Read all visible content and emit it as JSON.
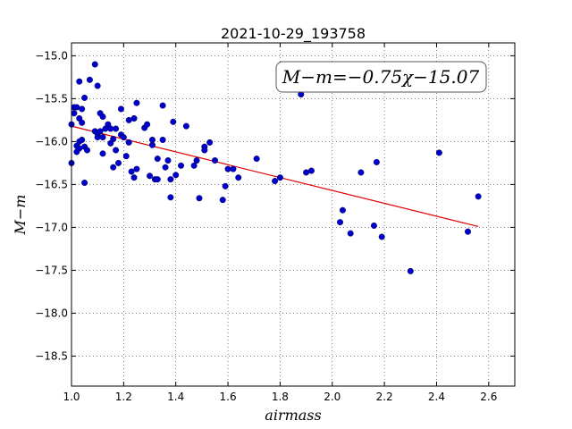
{
  "chart_data": {
    "type": "scatter",
    "title": "2021-10-29_193758",
    "xlabel": "airmass",
    "ylabel": "M−m",
    "annotation": "M−m=−0.75χ−15.07",
    "xlim": [
      1.0,
      2.7
    ],
    "ylim": [
      -18.85,
      -14.85
    ],
    "y_inverted": true,
    "grid": true,
    "x_ticks": [
      1.0,
      1.2,
      1.4,
      1.6,
      1.8,
      2.0,
      2.2,
      2.4,
      2.6
    ],
    "x_tick_labels": [
      "1.0",
      "1.2",
      "1.4",
      "1.6",
      "1.8",
      "2.0",
      "2.2",
      "2.4",
      "2.6"
    ],
    "y_ticks": [
      -15.0,
      -15.5,
      -16.0,
      -16.5,
      -17.0,
      -17.5,
      -18.0,
      -18.5
    ],
    "y_tick_labels": [
      "−15.0",
      "−15.5",
      "−16.0",
      "−16.5",
      "−17.0",
      "−17.5",
      "−18.0",
      "−18.5"
    ],
    "points_color": "#0000cc",
    "fit_color": "#dd0000",
    "fit_line": {
      "slope": -0.75,
      "intercept": -15.07,
      "x_range": [
        1.0,
        2.56
      ]
    },
    "points": [
      [
        1.0,
        -15.8
      ],
      [
        1.0,
        -16.25
      ],
      [
        1.01,
        -15.6
      ],
      [
        1.01,
        -15.67
      ],
      [
        1.02,
        -15.6
      ],
      [
        1.02,
        -16.05
      ],
      [
        1.02,
        -16.12
      ],
      [
        1.03,
        -15.73
      ],
      [
        1.03,
        -16.0
      ],
      [
        1.03,
        -16.08
      ],
      [
        1.03,
        -15.3
      ],
      [
        1.04,
        -15.62
      ],
      [
        1.04,
        -15.98
      ],
      [
        1.04,
        -15.78
      ],
      [
        1.05,
        -15.49
      ],
      [
        1.05,
        -16.48
      ],
      [
        1.05,
        -16.06
      ],
      [
        1.06,
        -16.1
      ],
      [
        1.07,
        -15.28
      ],
      [
        1.09,
        -15.1
      ],
      [
        1.09,
        -15.88
      ],
      [
        1.1,
        -15.35
      ],
      [
        1.1,
        -15.91
      ],
      [
        1.1,
        -15.95
      ],
      [
        1.11,
        -15.67
      ],
      [
        1.11,
        -15.88
      ],
      [
        1.12,
        -15.71
      ],
      [
        1.12,
        -16.14
      ],
      [
        1.12,
        -15.95
      ],
      [
        1.13,
        -15.85
      ],
      [
        1.14,
        -15.8
      ],
      [
        1.15,
        -15.85
      ],
      [
        1.15,
        -16.02
      ],
      [
        1.16,
        -15.97
      ],
      [
        1.16,
        -16.3
      ],
      [
        1.17,
        -15.85
      ],
      [
        1.17,
        -16.1
      ],
      [
        1.18,
        -16.25
      ],
      [
        1.19,
        -15.62
      ],
      [
        1.19,
        -15.92
      ],
      [
        1.2,
        -15.95
      ],
      [
        1.21,
        -16.17
      ],
      [
        1.22,
        -15.75
      ],
      [
        1.22,
        -16.01
      ],
      [
        1.23,
        -16.35
      ],
      [
        1.24,
        -15.73
      ],
      [
        1.24,
        -16.42
      ],
      [
        1.25,
        -16.32
      ],
      [
        1.25,
        -15.55
      ],
      [
        1.28,
        -15.84
      ],
      [
        1.29,
        -15.8
      ],
      [
        1.3,
        -16.4
      ],
      [
        1.31,
        -15.98
      ],
      [
        1.31,
        -16.04
      ],
      [
        1.32,
        -16.44
      ],
      [
        1.33,
        -16.44
      ],
      [
        1.33,
        -16.2
      ],
      [
        1.35,
        -15.58
      ],
      [
        1.35,
        -15.98
      ],
      [
        1.36,
        -16.3
      ],
      [
        1.37,
        -16.22
      ],
      [
        1.38,
        -16.44
      ],
      [
        1.38,
        -16.65
      ],
      [
        1.39,
        -15.77
      ],
      [
        1.4,
        -16.39
      ],
      [
        1.42,
        -16.28
      ],
      [
        1.44,
        -15.82
      ],
      [
        1.47,
        -16.28
      ],
      [
        1.48,
        -16.22
      ],
      [
        1.49,
        -16.66
      ],
      [
        1.51,
        -16.06
      ],
      [
        1.51,
        -16.1
      ],
      [
        1.53,
        -16.01
      ],
      [
        1.55,
        -16.22
      ],
      [
        1.58,
        -16.68
      ],
      [
        1.59,
        -16.52
      ],
      [
        1.6,
        -16.32
      ],
      [
        1.62,
        -16.32
      ],
      [
        1.64,
        -16.42
      ],
      [
        1.71,
        -16.2
      ],
      [
        1.78,
        -16.46
      ],
      [
        1.8,
        -16.42
      ],
      [
        1.88,
        -15.45
      ],
      [
        1.9,
        -16.36
      ],
      [
        1.92,
        -16.34
      ],
      [
        2.03,
        -16.94
      ],
      [
        2.04,
        -16.8
      ],
      [
        2.07,
        -17.07
      ],
      [
        2.11,
        -16.36
      ],
      [
        2.16,
        -16.98
      ],
      [
        2.17,
        -16.24
      ],
      [
        2.19,
        -17.11
      ],
      [
        2.3,
        -17.51
      ],
      [
        2.41,
        -16.13
      ],
      [
        2.52,
        -17.05
      ],
      [
        2.56,
        -16.64
      ]
    ]
  }
}
